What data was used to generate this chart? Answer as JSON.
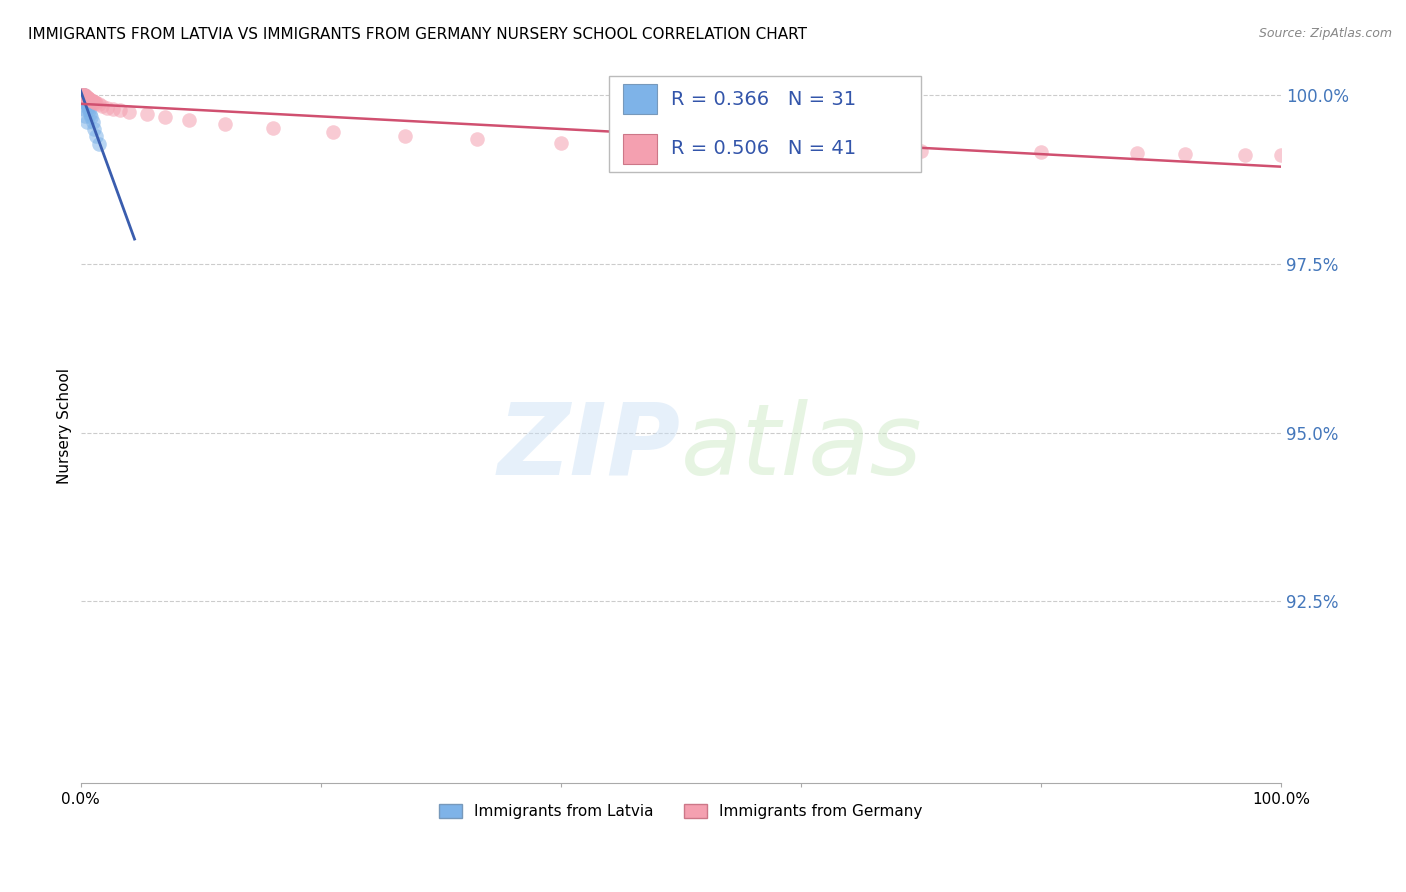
{
  "title": "IMMIGRANTS FROM LATVIA VS IMMIGRANTS FROM GERMANY NURSERY SCHOOL CORRELATION CHART",
  "source": "Source: ZipAtlas.com",
  "ylabel": "Nursery School",
  "xlim": [
    0.0,
    1.0
  ],
  "ylim": [
    0.898,
    1.004
  ],
  "yticks": [
    0.925,
    0.95,
    0.975,
    1.0
  ],
  "ytick_labels": [
    "92.5%",
    "95.0%",
    "97.5%",
    "100.0%"
  ],
  "xtick_labels": [
    "0.0%",
    "",
    "",
    "",
    "",
    "100.0%"
  ],
  "legend_R_latvia": "R = 0.366",
  "legend_N_latvia": "N = 31",
  "legend_R_germany": "R = 0.506",
  "legend_N_germany": "N = 41",
  "watermark_zip": "ZIP",
  "watermark_atlas": "atlas",
  "color_latvia": "#7EB3E8",
  "color_germany": "#F4A0B0",
  "color_trendline_latvia": "#3A5DAE",
  "color_trendline_germany": "#D05070",
  "scatter_alpha": 0.55,
  "scatter_size": 110,
  "latvia_x": [
    0.0008,
    0.001,
    0.0012,
    0.0015,
    0.002,
    0.002,
    0.002,
    0.0025,
    0.003,
    0.003,
    0.003,
    0.004,
    0.004,
    0.004,
    0.005,
    0.005,
    0.006,
    0.006,
    0.007,
    0.008,
    0.009,
    0.01,
    0.011,
    0.013,
    0.015,
    0.001,
    0.0015,
    0.002,
    0.003,
    0.004,
    0.005
  ],
  "latvia_y": [
    1.0,
    1.0,
    1.0,
    1.0,
    1.0,
    1.0,
    1.0,
    1.0,
    1.0,
    0.9998,
    0.9997,
    0.9996,
    0.9995,
    0.9993,
    0.999,
    0.9988,
    0.9985,
    0.9982,
    0.9978,
    0.9973,
    0.9968,
    0.996,
    0.995,
    0.994,
    0.9928,
    0.9997,
    0.9994,
    0.999,
    0.998,
    0.997,
    0.996
  ],
  "germany_x": [
    0.001,
    0.001,
    0.002,
    0.002,
    0.003,
    0.003,
    0.004,
    0.004,
    0.005,
    0.006,
    0.006,
    0.007,
    0.008,
    0.009,
    0.01,
    0.011,
    0.012,
    0.013,
    0.015,
    0.018,
    0.022,
    0.027,
    0.033,
    0.04,
    0.055,
    0.07,
    0.09,
    0.12,
    0.16,
    0.21,
    0.27,
    0.33,
    0.4,
    0.5,
    0.6,
    0.7,
    0.8,
    0.88,
    0.92,
    0.97,
    1.0
  ],
  "germany_y": [
    1.0,
    1.0,
    1.0,
    1.0,
    1.0,
    1.0,
    1.0,
    0.9999,
    0.9998,
    0.9997,
    0.9996,
    0.9995,
    0.9994,
    0.9993,
    0.9992,
    0.9991,
    0.999,
    0.9989,
    0.9987,
    0.9985,
    0.9982,
    0.998,
    0.9978,
    0.9975,
    0.9972,
    0.9968,
    0.9963,
    0.9958,
    0.9952,
    0.9946,
    0.994,
    0.9935,
    0.993,
    0.9925,
    0.9921,
    0.9918,
    0.9916,
    0.9914,
    0.9913,
    0.9912,
    0.9912
  ]
}
